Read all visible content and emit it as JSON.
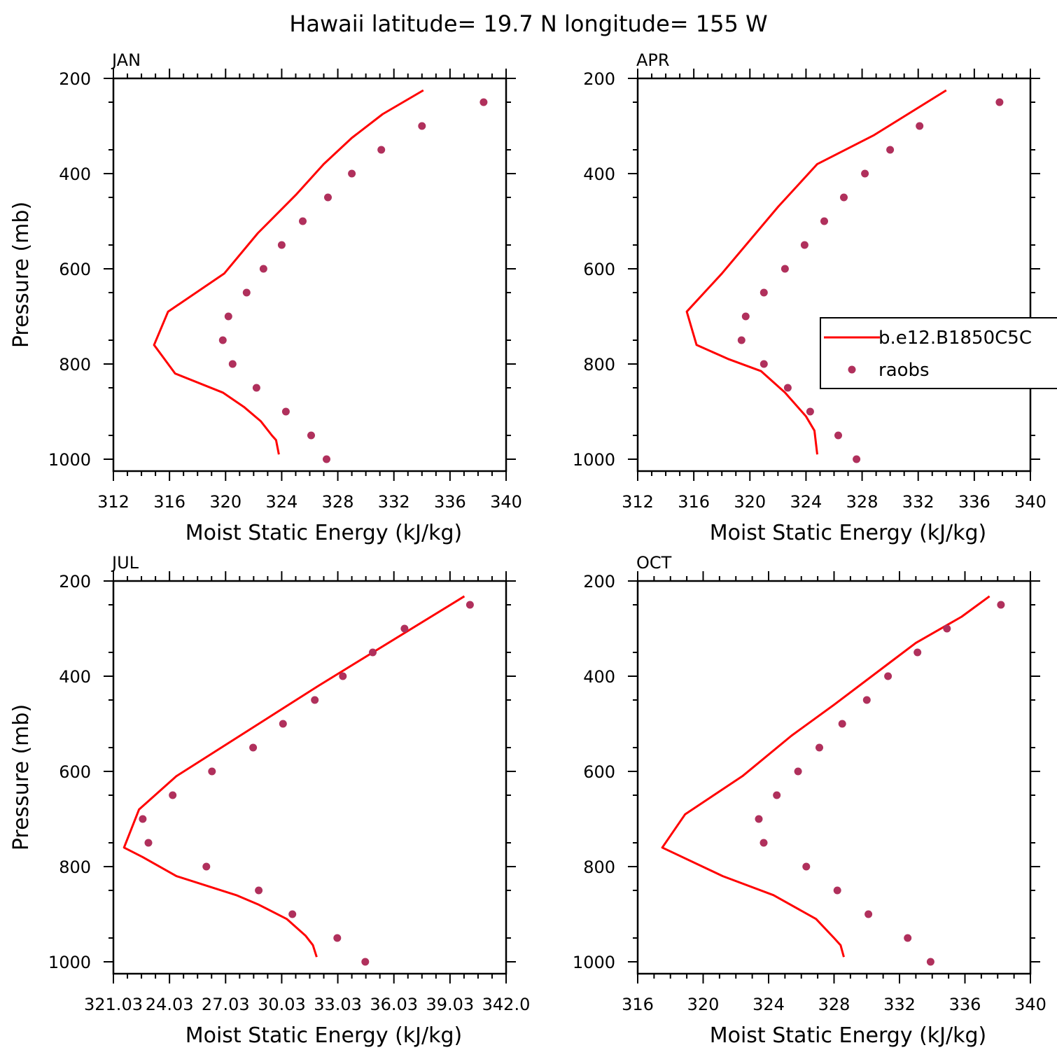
{
  "title": "Hawaii  latitude= 19.7 N longitude= 155 W",
  "colors": {
    "model": "#ff0000",
    "obs": "#b0305c",
    "axis": "#000000"
  },
  "legend": {
    "model_label": "b.e12.B1850C5C",
    "obs_label": "raobs"
  },
  "chart_data": [
    {
      "type": "line",
      "panel": "JAN",
      "xlabel": "Moist Static Energy (kJ/kg)",
      "ylabel": "Pressure (mb)",
      "xlim": [
        312,
        340
      ],
      "ylim": [
        1025,
        200
      ],
      "xticks": [
        312,
        316,
        320,
        324,
        328,
        332,
        336,
        340
      ],
      "xtick_labels": [
        "312",
        "316",
        "320",
        "324",
        "328",
        "332",
        "336",
        "340"
      ],
      "yticks": [
        200,
        400,
        600,
        800,
        1000
      ],
      "ytick_labels": [
        "200",
        "400",
        "600",
        "800",
        "1000"
      ],
      "series": [
        {
          "name": "b.e12.B1850C5C",
          "style": "line",
          "x": [
            334.1,
            331.2,
            329.0,
            327.0,
            325.0,
            322.3,
            319.9,
            315.9,
            314.9,
            316.4,
            319.8,
            321.3,
            322.5,
            323.3,
            323.6,
            323.8
          ],
          "y": [
            225,
            275,
            325,
            380,
            445,
            525,
            610,
            690,
            760,
            820,
            860,
            890,
            920,
            950,
            960,
            990
          ]
        },
        {
          "name": "raobs",
          "style": "dot",
          "x": [
            338.4,
            334.0,
            331.1,
            329.0,
            327.3,
            325.5,
            324.0,
            322.7,
            321.5,
            320.2,
            319.8,
            320.5,
            322.2,
            324.3,
            326.1,
            327.2
          ],
          "y": [
            250,
            300,
            350,
            400,
            450,
            500,
            550,
            600,
            650,
            700,
            750,
            800,
            850,
            900,
            950,
            1000
          ]
        }
      ]
    },
    {
      "type": "line",
      "panel": "APR",
      "xlabel": "Moist Static Energy (kJ/kg)",
      "ylabel": "",
      "xlim": [
        312,
        340
      ],
      "ylim": [
        1025,
        200
      ],
      "xticks": [
        312,
        316,
        320,
        324,
        328,
        332,
        336,
        340
      ],
      "xtick_labels": [
        "312",
        "316",
        "320",
        "324",
        "328",
        "332",
        "336",
        "340"
      ],
      "yticks": [
        200,
        400,
        600,
        800,
        1000
      ],
      "ytick_labels": [
        "200",
        "400",
        "600",
        "800",
        "1000"
      ],
      "series": [
        {
          "name": "b.e12.B1850C5C",
          "style": "line",
          "x": [
            334.0,
            328.8,
            324.8,
            322.0,
            318.0,
            315.5,
            316.2,
            318.5,
            320.8,
            322.5,
            324.0,
            324.6,
            324.8
          ],
          "y": [
            225,
            320,
            380,
            470,
            610,
            690,
            760,
            790,
            815,
            860,
            910,
            940,
            990
          ]
        },
        {
          "name": "raobs",
          "style": "dot",
          "x": [
            337.8,
            332.1,
            330.0,
            328.2,
            326.7,
            325.3,
            323.9,
            322.5,
            321.0,
            319.7,
            319.4,
            321.0,
            322.7,
            324.3,
            326.3,
            327.6
          ],
          "y": [
            250,
            300,
            350,
            400,
            450,
            500,
            550,
            600,
            650,
            700,
            750,
            800,
            850,
            900,
            950,
            1000
          ]
        }
      ]
    },
    {
      "type": "line",
      "panel": "JUL",
      "xlabel": "Moist Static Energy (kJ/kg)",
      "ylabel": "Pressure (mb)",
      "xlim": [
        321.03,
        342.03
      ],
      "ylim": [
        1025,
        200
      ],
      "xticks": [
        321.03,
        324.03,
        327.03,
        330.03,
        333.03,
        336.03,
        339.03,
        342.03
      ],
      "xtick_labels": [
        "321.03",
        "24.03",
        "27.03",
        "30.03",
        "33.03",
        "36.03",
        "39.03",
        "342.0"
      ],
      "yticks": [
        200,
        400,
        600,
        800,
        1000
      ],
      "ytick_labels": [
        "200",
        "400",
        "600",
        "800",
        "1000"
      ],
      "series": [
        {
          "name": "b.e12.B1850C5C",
          "style": "line",
          "x": [
            339.8,
            332.0,
            328.0,
            324.4,
            322.4,
            321.6,
            322.6,
            324.4,
            327.6,
            328.8,
            330.3,
            331.3,
            331.7,
            331.9
          ],
          "y": [
            232,
            420,
            520,
            610,
            680,
            760,
            780,
            820,
            860,
            880,
            910,
            945,
            965,
            990
          ]
        },
        {
          "name": "raobs",
          "style": "dot",
          "x": [
            340.1,
            336.6,
            334.9,
            333.3,
            331.8,
            330.1,
            328.5,
            326.3,
            324.2,
            322.6,
            322.9,
            326.0,
            328.8,
            330.6,
            333.0,
            334.5
          ],
          "y": [
            250,
            300,
            350,
            400,
            450,
            500,
            550,
            600,
            650,
            700,
            750,
            800,
            850,
            900,
            950,
            1000
          ]
        }
      ]
    },
    {
      "type": "line",
      "panel": "OCT",
      "xlabel": "Moist Static Energy (kJ/kg)",
      "ylabel": "",
      "xlim": [
        316,
        340
      ],
      "ylim": [
        1025,
        200
      ],
      "xticks": [
        316,
        320,
        324,
        328,
        332,
        336,
        340
      ],
      "xtick_labels": [
        "316",
        "320",
        "324",
        "328",
        "332",
        "336",
        "340"
      ],
      "yticks": [
        200,
        400,
        600,
        800,
        1000
      ],
      "ytick_labels": [
        "200",
        "400",
        "600",
        "800",
        "1000"
      ],
      "series": [
        {
          "name": "b.e12.B1850C5C",
          "style": "line",
          "x": [
            337.5,
            335.8,
            333.0,
            328.0,
            325.4,
            322.4,
            318.9,
            317.5,
            321.2,
            324.3,
            326.9,
            328.0,
            328.4,
            328.6
          ],
          "y": [
            232,
            275,
            330,
            460,
            525,
            610,
            690,
            760,
            820,
            860,
            910,
            950,
            965,
            990
          ]
        },
        {
          "name": "raobs",
          "style": "dot",
          "x": [
            338.2,
            334.9,
            333.1,
            331.3,
            330.0,
            328.5,
            327.1,
            325.8,
            324.5,
            323.4,
            323.7,
            326.3,
            328.2,
            330.1,
            332.5,
            333.9
          ],
          "y": [
            250,
            300,
            350,
            400,
            450,
            500,
            550,
            600,
            650,
            700,
            750,
            800,
            850,
            900,
            950,
            1000
          ]
        }
      ]
    }
  ]
}
